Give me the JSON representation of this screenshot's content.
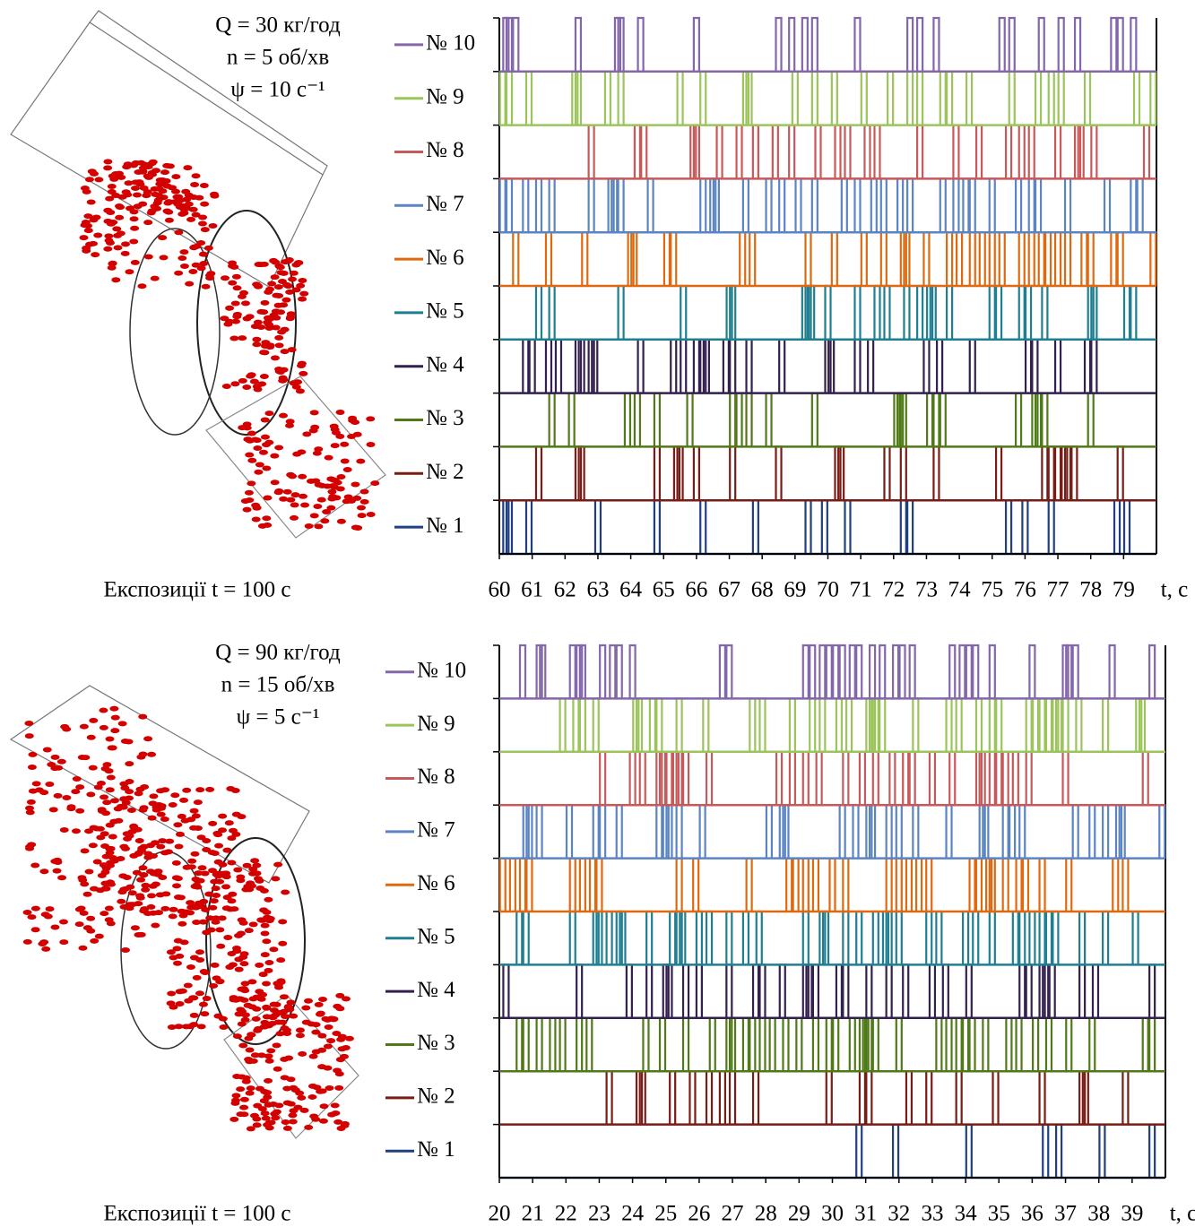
{
  "chart_data": [
    {
      "type": "pulse",
      "annotations": [
        "Q = 30 кг/год",
        "n = 5 об/хв",
        "ψ = 10 с⁻¹"
      ],
      "caption": "Експозиції t = 100 с",
      "x_label": "t, с",
      "xlim": [
        60,
        80
      ],
      "xticks": [
        60,
        61,
        62,
        63,
        64,
        65,
        66,
        67,
        68,
        69,
        70,
        71,
        72,
        73,
        74,
        75,
        76,
        77,
        78,
        79
      ],
      "series": [
        {
          "name": "№ 1",
          "color": "#1f3f80",
          "x": [
            60.2,
            60.3,
            60.9,
            63.0,
            64.8,
            66.2,
            67.8,
            69.4,
            69.9,
            70.6,
            72.3,
            72.5,
            75.5,
            76.0,
            76.8,
            78.8,
            79.1
          ]
        },
        {
          "name": "№ 2",
          "color": "#7a1c16",
          "x": [
            61.2,
            62.4,
            62.5,
            64.8,
            65.4,
            65.5,
            66.0,
            67.1,
            68.5,
            70.3,
            70.4,
            71.8,
            72.3,
            73.3,
            75.2,
            76.6,
            76.8,
            77.0,
            77.2,
            77.3,
            77.5,
            78.9
          ]
        },
        {
          "name": "№ 3",
          "color": "#4f7a17",
          "x": [
            61.6,
            62.2,
            63.9,
            64.2,
            64.8,
            65.8,
            67.1,
            67.3,
            67.6,
            68.2,
            69.6,
            72.1,
            72.2,
            72.3,
            73.1,
            73.3,
            73.5,
            75.8,
            76.3,
            76.4,
            76.6,
            78.0
          ]
        },
        {
          "name": "№ 4",
          "color": "#33204f",
          "x": [
            60.8,
            61.0,
            61.5,
            61.8,
            62.4,
            62.5,
            62.8,
            62.9,
            64.3,
            65.3,
            65.6,
            66.0,
            66.2,
            66.3,
            66.9,
            67.1,
            67.6,
            68.6,
            70.0,
            70.1,
            70.9,
            71.3,
            73.0,
            73.4,
            74.4,
            76.1,
            76.3,
            77.0,
            77.9,
            78.1
          ]
        },
        {
          "name": "№ 5",
          "color": "#1f7f92",
          "x": [
            61.2,
            61.6,
            63.7,
            65.6,
            67.0,
            67.1,
            69.3,
            69.4,
            69.5,
            70.0,
            70.9,
            71.5,
            71.8,
            72.4,
            72.8,
            73.1,
            73.2,
            73.7,
            75.0,
            75.2,
            75.9,
            76.1,
            76.6,
            78.0,
            78.1,
            79.1,
            79.3
          ]
        },
        {
          "name": "№ 6",
          "color": "#e0680f",
          "x": [
            60.5,
            61.5,
            62.6,
            64.0,
            64.1,
            65.1,
            65.3,
            67.4,
            67.7,
            69.4,
            70.2,
            71.1,
            71.7,
            72.3,
            72.4,
            73.0,
            73.7,
            74.0,
            74.4,
            74.7,
            75.0,
            75.3,
            75.9,
            76.2,
            76.5,
            76.7,
            77.0,
            77.3,
            77.8,
            78.0,
            78.7,
            78.9,
            79.9
          ]
        },
        {
          "name": "№ 7",
          "color": "#5b84c4",
          "x": [
            60.1,
            60.3,
            60.8,
            61.2,
            61.6,
            62.8,
            63.4,
            63.5,
            63.7,
            64.6,
            66.2,
            66.5,
            66.6,
            67.5,
            68.2,
            68.6,
            69.1,
            69.6,
            70.5,
            70.9,
            71.4,
            71.7,
            72.2,
            72.5,
            73.5,
            73.9,
            74.2,
            74.4,
            75.0,
            75.8,
            76.2,
            76.4,
            77.3,
            78.5,
            79.3,
            79.5
          ]
        },
        {
          "name": "№ 8",
          "color": "#c8595a",
          "x": [
            62.8,
            64.2,
            64.4,
            65.9,
            66.0,
            66.7,
            67.3,
            67.8,
            68.4,
            68.9,
            69.7,
            70.3,
            70.6,
            71.2,
            71.5,
            72.8,
            73.9,
            74.6,
            75.5,
            75.9,
            76.2,
            77.0,
            77.6,
            77.7,
            78.1,
            79.7
          ]
        },
        {
          "name": "№ 9",
          "color": "#9bc45a",
          "x": [
            60.1,
            60.3,
            60.9,
            62.3,
            62.4,
            63.3,
            63.7,
            65.5,
            66.2,
            67.5,
            67.6,
            69.0,
            69.6,
            70.2,
            71.1,
            71.9,
            72.5,
            72.8,
            73.5,
            73.7,
            74.3,
            75.6,
            76.4,
            76.8,
            77.1,
            77.9,
            79.4,
            79.9
          ]
        },
        {
          "name": "№ 10",
          "color": "#8466aa",
          "x": [
            60.2,
            60.3,
            60.5,
            62.4,
            63.6,
            63.7,
            64.3,
            66.0,
            68.5,
            68.9,
            69.3,
            69.6,
            70.9,
            72.5,
            72.8,
            73.3,
            75.3,
            75.6,
            76.5,
            77.1,
            77.6,
            78.7,
            78.9,
            79.3
          ]
        }
      ]
    },
    {
      "type": "pulse",
      "annotations": [
        "Q = 90 кг/год",
        "n = 15 об/хв",
        "ψ = 5 с⁻¹"
      ],
      "caption": "Експозиції t = 100 с",
      "x_label": "t, с",
      "xlim": [
        20,
        40
      ],
      "xticks": [
        20,
        21,
        22,
        23,
        24,
        25,
        26,
        27,
        28,
        29,
        30,
        31,
        32,
        33,
        34,
        35,
        36,
        37,
        38,
        39
      ],
      "series": [
        {
          "name": "№ 1",
          "color": "#1f3f80",
          "x": [
            30.8,
            31.9,
            34.1,
            36.4,
            36.8,
            38.1,
            39.6
          ]
        },
        {
          "name": "№ 2",
          "color": "#7a1c16",
          "x": [
            23.3,
            24.2,
            24.3,
            25.2,
            25.8,
            26.3,
            26.7,
            27.0,
            27.7,
            29.9,
            30.9,
            31.1,
            32.3,
            32.9,
            33.8,
            34.9,
            36.3,
            37.5,
            37.6,
            38.8
          ]
        },
        {
          "name": "№ 3",
          "color": "#4f7a17",
          "x": [
            20.6,
            20.8,
            21.2,
            21.6,
            21.9,
            22.4,
            22.7,
            24.4,
            24.9,
            25.6,
            26.4,
            26.9,
            27.0,
            27.4,
            27.6,
            27.9,
            28.2,
            28.6,
            29.0,
            29.5,
            29.9,
            30.1,
            30.6,
            30.9,
            31.0,
            31.1,
            31.3,
            32.0,
            33.2,
            33.5,
            33.8,
            34.0,
            34.2,
            34.6,
            35.3,
            35.6,
            36.1,
            36.5,
            37.1,
            37.8,
            39.4,
            39.6
          ]
        },
        {
          "name": "№ 4",
          "color": "#33204f",
          "x": [
            20.2,
            22.4,
            23.9,
            24.5,
            25.0,
            25.1,
            25.6,
            26.0,
            26.9,
            27.7,
            27.9,
            28.5,
            29.2,
            29.3,
            29.5,
            30.2,
            30.4,
            31.1,
            31.7,
            32.2,
            33.0,
            33.4,
            34.1,
            35.7,
            35.9,
            36.3,
            36.4,
            36.6,
            37.5,
            37.9,
            39.6
          ]
        },
        {
          "name": "№ 5",
          "color": "#1f7f92",
          "x": [
            20.6,
            20.8,
            22.2,
            22.9,
            23.0,
            23.3,
            23.6,
            23.7,
            24.5,
            25.2,
            25.4,
            25.5,
            26.0,
            26.3,
            26.9,
            27.4,
            27.8,
            29.2,
            29.7,
            29.8,
            30.4,
            30.8,
            31.3,
            31.6,
            31.7,
            32.0,
            32.9,
            33.2,
            34.0,
            34.3,
            34.8,
            35.5,
            35.7,
            36.0,
            36.3,
            36.5,
            36.7,
            37.5,
            38.2,
            39.1
          ]
        },
        {
          "name": "№ 6",
          "color": "#e0680f",
          "x": [
            20.1,
            20.4,
            20.7,
            20.9,
            22.2,
            22.5,
            22.8,
            23.0,
            25.4,
            25.9,
            27.5,
            28.7,
            28.9,
            29.2,
            29.5,
            30.0,
            30.4,
            31.7,
            32.0,
            32.3,
            32.6,
            32.9,
            34.2,
            34.4,
            34.7,
            34.8,
            35.2,
            35.6,
            35.8,
            36.3,
            37.1,
            38.5,
            38.8
          ]
        },
        {
          "name": "№ 7",
          "color": "#5b84c4",
          "x": [
            20.8,
            20.9,
            21.2,
            22.1,
            22.9,
            23.1,
            23.6,
            24.8,
            25.0,
            25.1,
            25.4,
            26.1,
            28.1,
            28.5,
            28.6,
            30.3,
            30.7,
            31.1,
            31.2,
            31.7,
            32.0,
            32.5,
            33.5,
            34.5,
            34.6,
            35.2,
            35.4,
            35.7,
            37.3,
            37.8,
            38.2,
            38.6,
            38.7,
            39.9
          ]
        },
        {
          "name": "№ 8",
          "color": "#c8595a",
          "x": [
            23.1,
            24.0,
            24.3,
            24.8,
            24.9,
            25.1,
            25.3,
            25.4,
            25.6,
            26.3,
            28.4,
            28.8,
            29.2,
            29.6,
            30.4,
            30.9,
            31.3,
            31.8,
            32.2,
            32.4,
            33.0,
            33.6,
            34.4,
            34.5,
            34.8,
            35.0,
            35.2,
            35.5,
            35.9,
            37.0,
            39.4
          ]
        },
        {
          "name": "№ 9",
          "color": "#9bc45a",
          "x": [
            21.9,
            22.3,
            22.5,
            22.9,
            24.1,
            24.2,
            24.6,
            24.8,
            25.4,
            26.2,
            27.6,
            27.9,
            28.8,
            29.4,
            29.7,
            30.2,
            30.5,
            31.1,
            31.2,
            31.3,
            31.5,
            32.5,
            33.5,
            33.8,
            34.4,
            34.8,
            35.0,
            35.9,
            36.1,
            36.3,
            36.5,
            36.7,
            36.8,
            37.0,
            37.4,
            38.2,
            39.2,
            39.3
          ]
        },
        {
          "name": "№ 10",
          "color": "#8466aa",
          "x": [
            20.7,
            21.2,
            21.3,
            22.2,
            22.4,
            22.5,
            23.1,
            23.4,
            23.6,
            24.0,
            26.7,
            26.9,
            29.2,
            29.4,
            29.7,
            29.9,
            30.1,
            30.3,
            30.6,
            30.8,
            31.2,
            31.5,
            31.9,
            32.1,
            32.4,
            33.6,
            33.9,
            34.1,
            34.3,
            34.8,
            36.0,
            37.0,
            37.1,
            37.3,
            38.4,
            39.6
          ]
        }
      ]
    }
  ]
}
